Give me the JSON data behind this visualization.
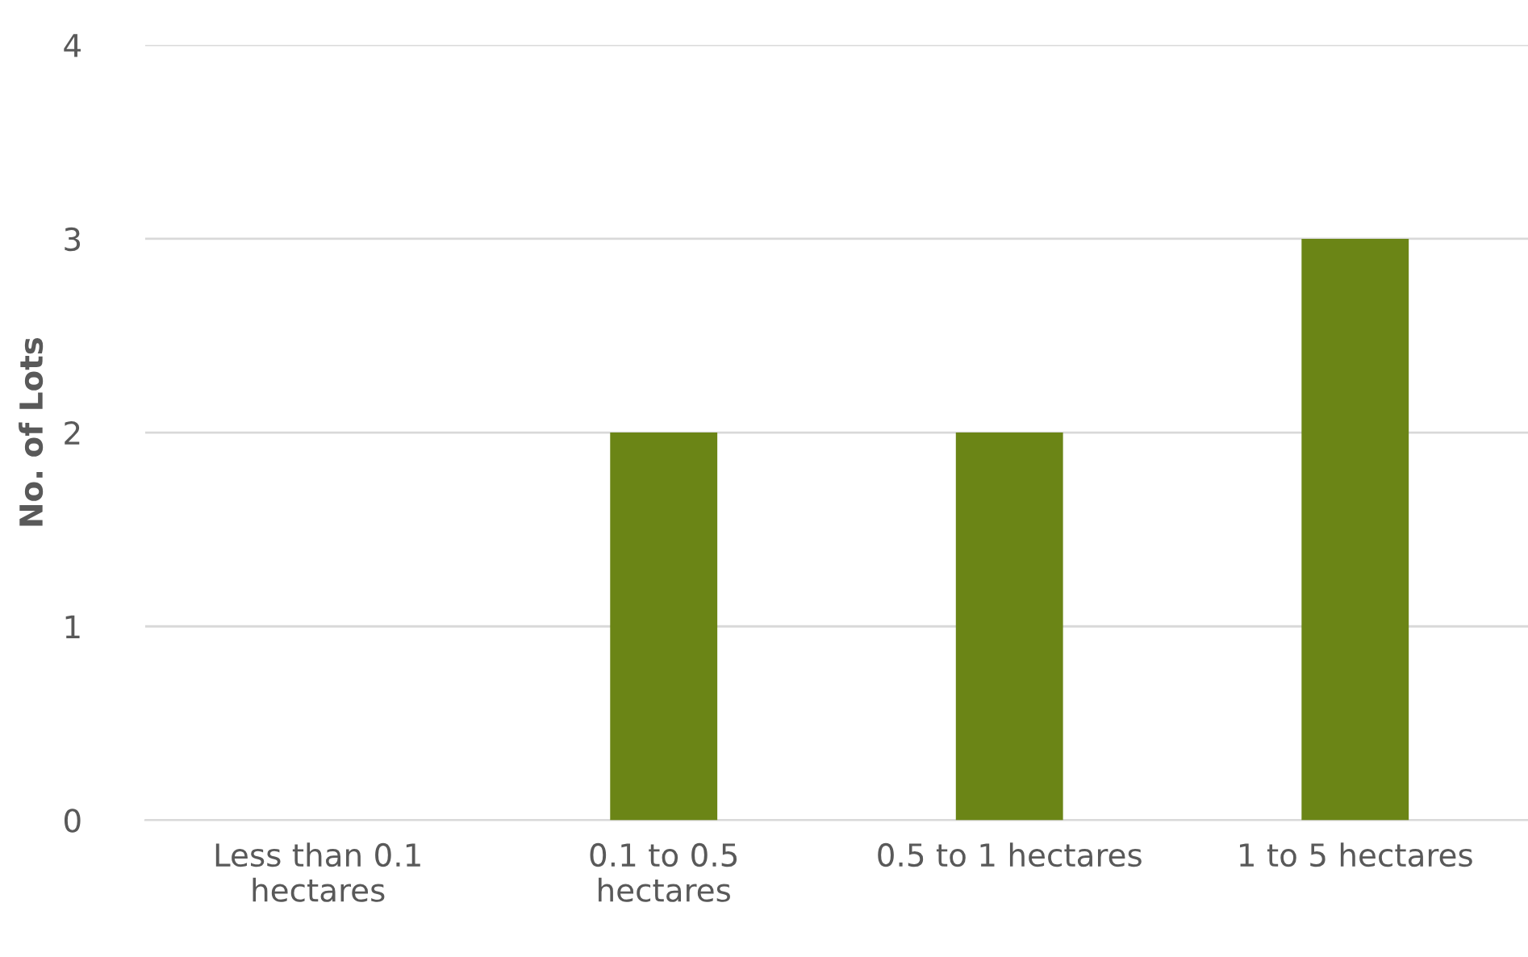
{
  "chart_data": {
    "type": "bar",
    "ylabel": "No. of Lots",
    "categories": [
      "Less than 0.1 hectares",
      "0.1 to 0.5 hectares",
      "0.5 to 1 hectares",
      "1 to 5 hectares"
    ],
    "values": [
      0,
      2,
      2,
      3
    ],
    "color": "#6b8516",
    "ylim": [
      0,
      4
    ],
    "yticks": [
      0,
      1,
      2,
      3,
      4
    ],
    "grid": "y"
  }
}
